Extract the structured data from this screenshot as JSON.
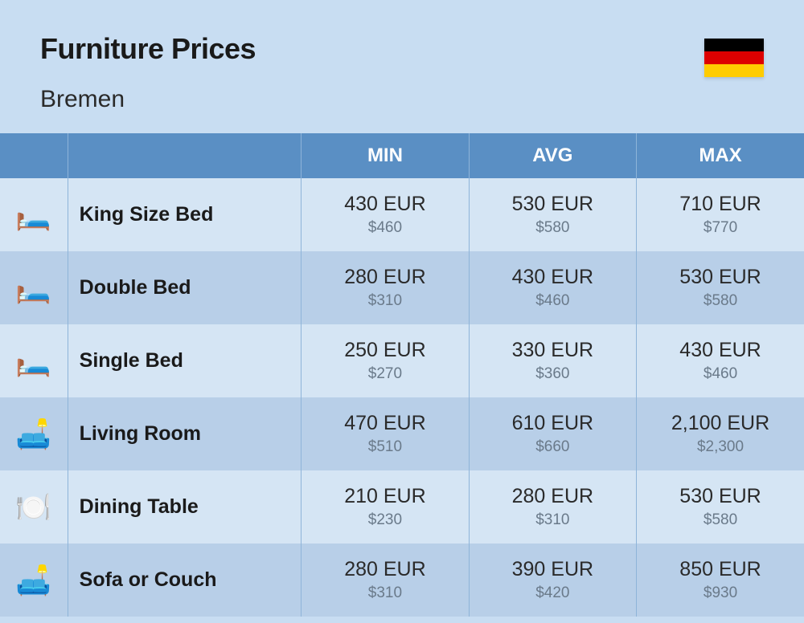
{
  "header": {
    "title": "Furniture Prices",
    "subtitle": "Bremen",
    "flag_colors": [
      "#000000",
      "#dd0000",
      "#ffcc00"
    ]
  },
  "columns": {
    "min": "MIN",
    "avg": "AVG",
    "max": "MAX"
  },
  "rows": [
    {
      "icon": "🛏️",
      "name": "King Size Bed",
      "min_eur": "430 EUR",
      "min_usd": "$460",
      "avg_eur": "530 EUR",
      "avg_usd": "$580",
      "max_eur": "710 EUR",
      "max_usd": "$770"
    },
    {
      "icon": "🛏️",
      "name": "Double Bed",
      "min_eur": "280 EUR",
      "min_usd": "$310",
      "avg_eur": "430 EUR",
      "avg_usd": "$460",
      "max_eur": "530 EUR",
      "max_usd": "$580"
    },
    {
      "icon": "🛏️",
      "name": "Single Bed",
      "min_eur": "250 EUR",
      "min_usd": "$270",
      "avg_eur": "330 EUR",
      "avg_usd": "$360",
      "max_eur": "430 EUR",
      "max_usd": "$460"
    },
    {
      "icon": "🛋️",
      "name": "Living Room",
      "min_eur": "470 EUR",
      "min_usd": "$510",
      "avg_eur": "610 EUR",
      "avg_usd": "$660",
      "max_eur": "2,100 EUR",
      "max_usd": "$2,300"
    },
    {
      "icon": "🍽️",
      "name": "Dining Table",
      "min_eur": "210 EUR",
      "min_usd": "$230",
      "avg_eur": "280 EUR",
      "avg_usd": "$310",
      "max_eur": "530 EUR",
      "max_usd": "$580"
    },
    {
      "icon": "🛋️",
      "name": "Sofa or Couch",
      "min_eur": "280 EUR",
      "min_usd": "$310",
      "avg_eur": "390 EUR",
      "avg_usd": "$420",
      "max_eur": "850 EUR",
      "max_usd": "$930"
    }
  ],
  "styling": {
    "page_bg": "#c8ddf2",
    "header_row_bg": "#5a8fc4",
    "row_odd_bg": "#d5e5f4",
    "row_even_bg": "#b8cfe8",
    "grid_color": "#8eb4d9",
    "title_color": "#1a1a1a",
    "usd_color": "#6a7a8a",
    "title_fontsize": 36,
    "subtitle_fontsize": 30,
    "header_fontsize": 24,
    "eur_fontsize": 25,
    "usd_fontsize": 19
  }
}
